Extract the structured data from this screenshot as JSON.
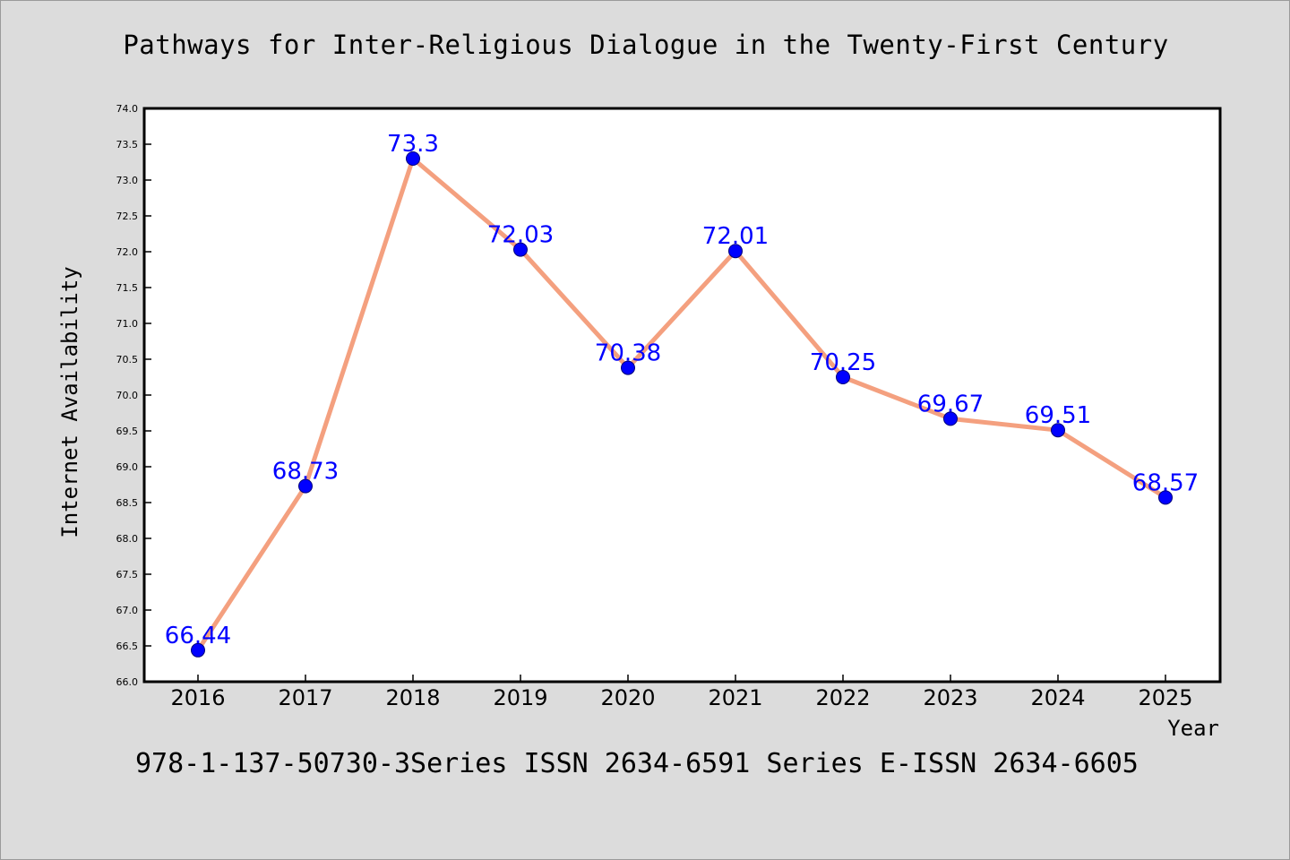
{
  "chart_data": {
    "type": "line",
    "title": "Pathways for Inter-Religious Dialogue in the Twenty-First Century",
    "xlabel": "Year",
    "ylabel": "Internet Availability",
    "x": [
      "2016",
      "2017",
      "2018",
      "2019",
      "2020",
      "2021",
      "2022",
      "2023",
      "2024",
      "2025"
    ],
    "values": [
      66.44,
      68.73,
      73.3,
      72.03,
      70.38,
      72.01,
      70.25,
      69.67,
      69.51,
      68.57
    ],
    "data_labels": [
      "66.44",
      "68.73",
      "73.3",
      "72.03",
      "70.38",
      "72.01",
      "70.25",
      "69.67",
      "69.51",
      "68.57"
    ],
    "ylim": [
      66.0,
      74.0
    ],
    "yticks": [
      "66.0",
      "66.5",
      "67.0",
      "67.5",
      "68.0",
      "68.5",
      "69.0",
      "69.5",
      "70.0",
      "70.5",
      "71.0",
      "71.5",
      "72.0",
      "72.5",
      "73.0",
      "73.5",
      "74.0"
    ],
    "grid": false,
    "legend": "none",
    "line_color": "#f4a07f",
    "marker_color": "#0000ff",
    "label_color": "#0000ff"
  },
  "footer": "978-1-137-50730-3Series ISSN 2634-6591 Series E-ISSN 2634-6605"
}
